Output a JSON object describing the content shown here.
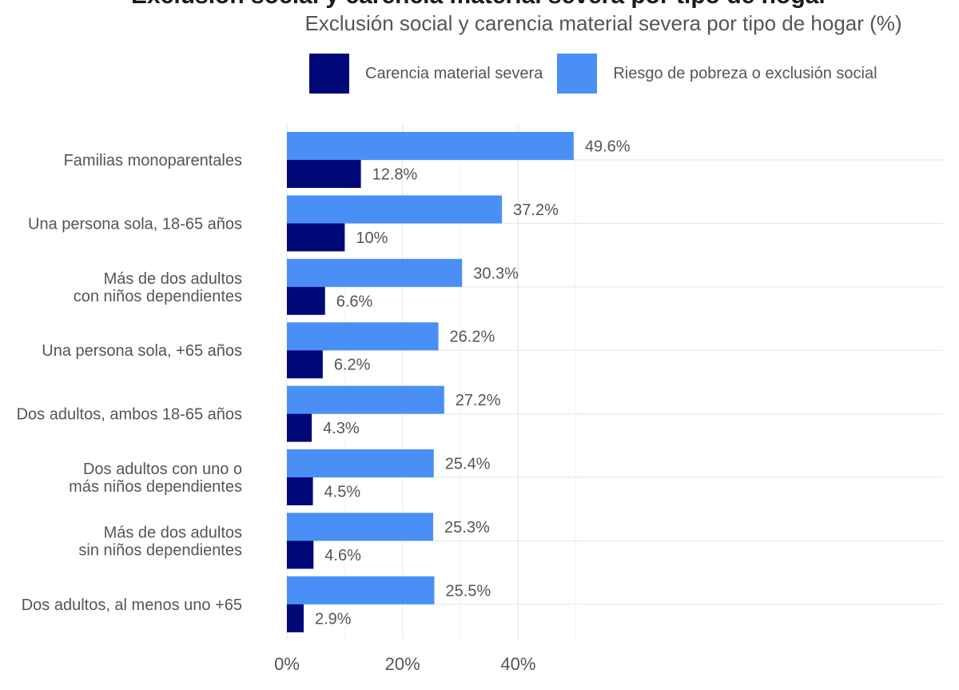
{
  "title": "Exclusión social y carencia material severa por tipo de hogar",
  "subtitle": "Exclusión social y carencia material severa por tipo de hogar (%)",
  "legend": [
    {
      "name": "Carencia material severa",
      "color": "#000878"
    },
    {
      "name": "Riesgo de pobreza o exclusión social",
      "color": "#4a8ff5"
    }
  ],
  "chart_data": {
    "type": "bar",
    "orientation": "horizontal",
    "categories": [
      [
        "Familias monoparentales"
      ],
      [
        "Una persona sola, 18-65 años"
      ],
      [
        "Más de dos adultos",
        "con niños dependientes"
      ],
      [
        "Una persona sola, +65 años"
      ],
      [
        "Dos adultos, ambos 18-65 años"
      ],
      [
        "Dos adultos con uno o",
        "más niños dependientes"
      ],
      [
        "Más de dos adultos",
        "sin niños dependientes"
      ],
      [
        "Dos adultos, al menos uno +65"
      ]
    ],
    "series": [
      {
        "name": "Riesgo de pobreza o exclusión social",
        "color": "#4a8ff5",
        "values": [
          49.6,
          37.2,
          30.3,
          26.2,
          27.2,
          25.4,
          25.3,
          25.5
        ],
        "labels": [
          "49.6%",
          "37.2%",
          "30.3%",
          "26.2%",
          "27.2%",
          "25.4%",
          "25.3%",
          "25.5%"
        ]
      },
      {
        "name": "Carencia material severa",
        "color": "#000878",
        "values": [
          12.8,
          10,
          6.6,
          6.2,
          4.3,
          4.5,
          4.6,
          2.9
        ],
        "labels": [
          "12.8%",
          "10%",
          "6.6%",
          "6.2%",
          "4.3%",
          "4.5%",
          "4.6%",
          "2.9%"
        ]
      }
    ],
    "x_ticks": [
      0,
      20,
      40
    ],
    "x_tick_labels": [
      "0%",
      "20%",
      "40%"
    ],
    "xlim": [
      0,
      57.4
    ],
    "grid": true,
    "legend_position": "top"
  }
}
